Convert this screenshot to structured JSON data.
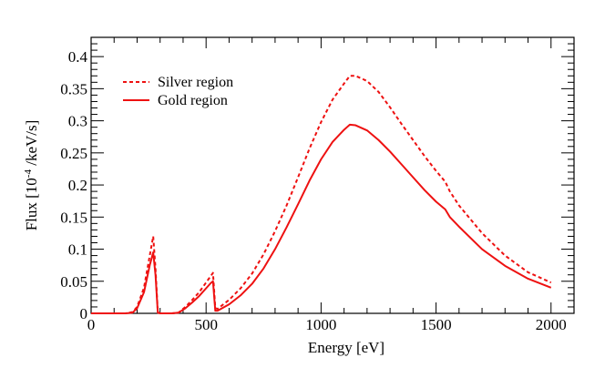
{
  "chart_data": {
    "type": "line",
    "title": "",
    "xlabel": "Energy [eV]",
    "ylabel": {
      "prefix": "Flux [10",
      "exponent": "-4",
      "suffix": " /keV/s]"
    },
    "xlim": [
      0,
      2100
    ],
    "ylim": [
      0,
      0.43
    ],
    "x_ticks": [
      0,
      500,
      1000,
      1500,
      2000
    ],
    "x_tick_labels": [
      "0",
      "500",
      "1000",
      "1500",
      "2000"
    ],
    "y_ticks": [
      0,
      0.05,
      0.1,
      0.15,
      0.2,
      0.25,
      0.3,
      0.35,
      0.4
    ],
    "y_tick_labels": [
      "0",
      "0.05",
      "0.1",
      "0.15",
      "0.2",
      "0.25",
      "0.3",
      "0.35",
      "0.4"
    ],
    "legend_position": "top-left",
    "grid": false,
    "series": [
      {
        "name": "Silver region",
        "color": "#ee1111",
        "style": "dashed",
        "x": [
          0,
          150,
          180,
          200,
          230,
          255,
          270,
          280,
          290,
          300,
          320,
          350,
          380,
          410,
          440,
          470,
          500,
          520,
          530,
          540,
          550,
          600,
          650,
          700,
          750,
          800,
          850,
          900,
          950,
          1000,
          1050,
          1100,
          1125,
          1150,
          1200,
          1250,
          1300,
          1350,
          1400,
          1450,
          1500,
          1540,
          1560,
          1600,
          1700,
          1800,
          1900,
          2000
        ],
        "values": [
          0,
          0,
          0.002,
          0.01,
          0.04,
          0.09,
          0.12,
          0.07,
          0.002,
          0,
          0,
          0,
          0.001,
          0.01,
          0.021,
          0.033,
          0.048,
          0.058,
          0.063,
          0.008,
          0.007,
          0.021,
          0.039,
          0.062,
          0.092,
          0.128,
          0.168,
          0.212,
          0.257,
          0.298,
          0.333,
          0.358,
          0.37,
          0.37,
          0.362,
          0.345,
          0.321,
          0.295,
          0.27,
          0.245,
          0.222,
          0.205,
          0.19,
          0.168,
          0.125,
          0.09,
          0.064,
          0.048
        ]
      },
      {
        "name": "Gold region",
        "color": "#ee1111",
        "style": "solid",
        "x": [
          0,
          150,
          180,
          200,
          230,
          255,
          270,
          280,
          290,
          300,
          320,
          350,
          380,
          410,
          440,
          470,
          500,
          520,
          530,
          540,
          550,
          600,
          650,
          700,
          750,
          800,
          850,
          900,
          950,
          1000,
          1050,
          1100,
          1125,
          1150,
          1200,
          1250,
          1300,
          1350,
          1400,
          1450,
          1500,
          1540,
          1560,
          1600,
          1700,
          1800,
          1900,
          2000
        ],
        "values": [
          0,
          0,
          0.001,
          0.008,
          0.033,
          0.075,
          0.095,
          0.06,
          0.001,
          0,
          0,
          0,
          0.001,
          0.008,
          0.017,
          0.027,
          0.039,
          0.047,
          0.05,
          0.004,
          0.004,
          0.014,
          0.028,
          0.046,
          0.07,
          0.1,
          0.134,
          0.17,
          0.207,
          0.24,
          0.267,
          0.286,
          0.294,
          0.293,
          0.285,
          0.27,
          0.252,
          0.232,
          0.212,
          0.192,
          0.174,
          0.162,
          0.15,
          0.135,
          0.1,
          0.074,
          0.054,
          0.04
        ]
      }
    ]
  }
}
